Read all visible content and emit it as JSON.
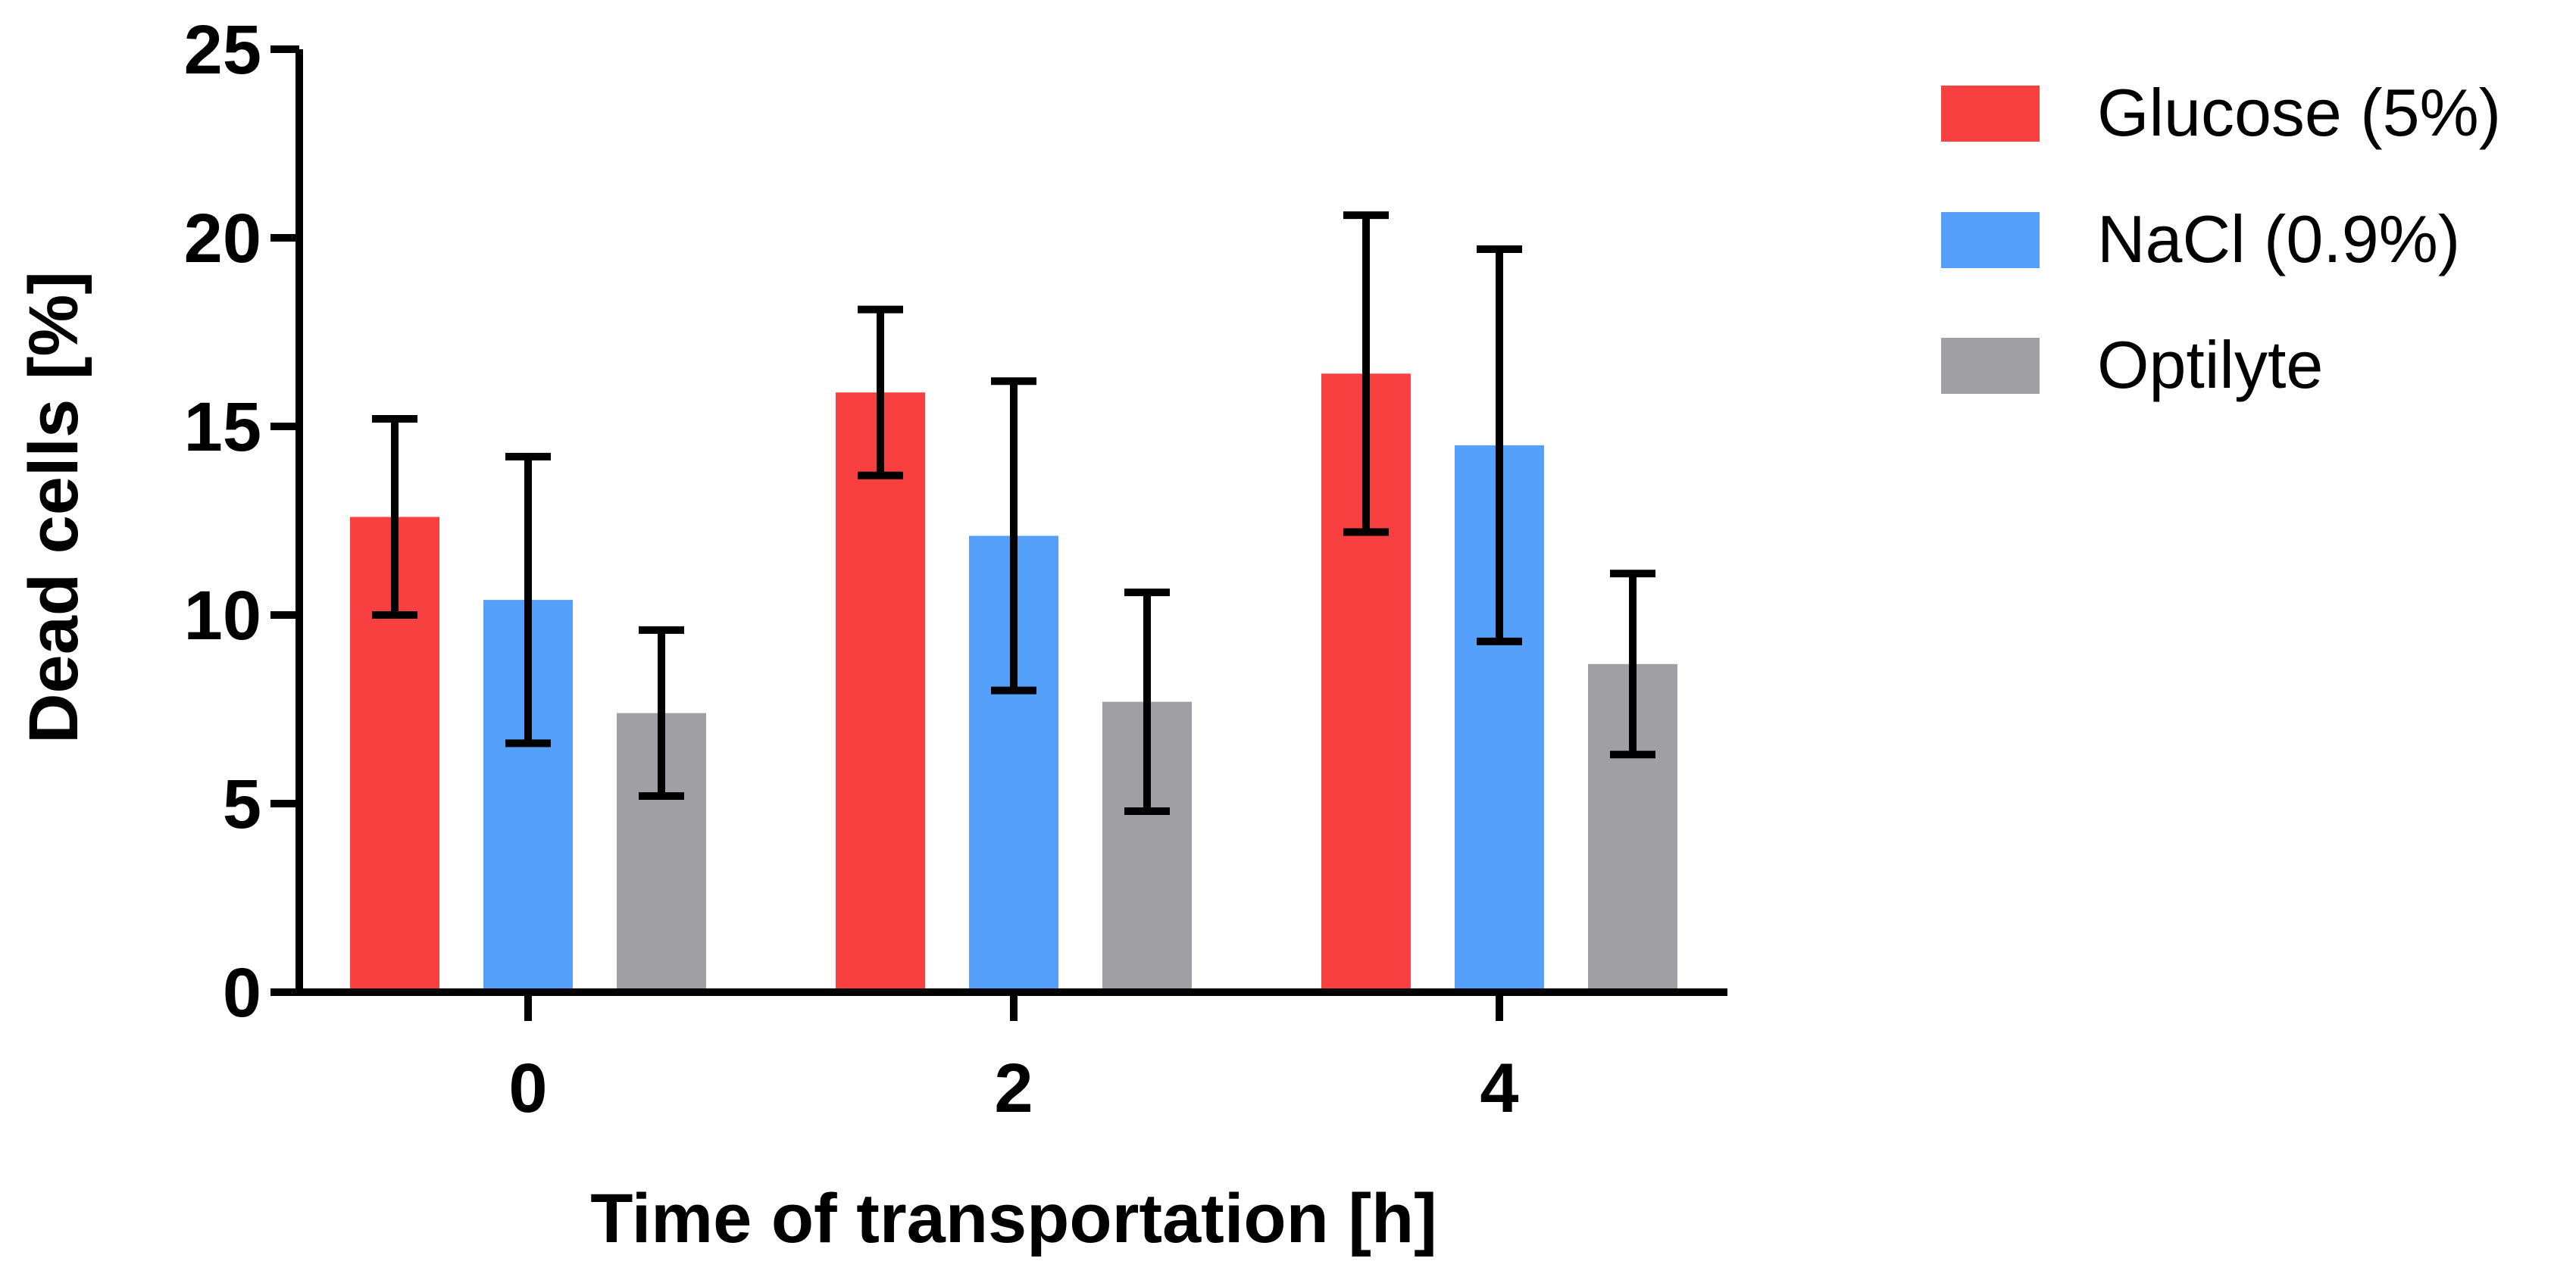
{
  "chart_data": {
    "type": "bar",
    "xlabel": "Time of transportation [h]",
    "ylabel": "Dead cells [%]",
    "ylim": [
      0,
      25
    ],
    "yticks": [
      0,
      5,
      10,
      15,
      20,
      25
    ],
    "categories": [
      "0",
      "2",
      "4"
    ],
    "series": [
      {
        "name": "Glucose (5%)",
        "color": "#f84040",
        "values": [
          12.6,
          15.9,
          16.4
        ],
        "error": [
          2.6,
          2.2,
          4.2
        ]
      },
      {
        "name": "NaCl (0.9%)",
        "color": "#55a0fa",
        "values": [
          10.4,
          12.1,
          14.5
        ],
        "error": [
          3.8,
          4.1,
          5.2
        ]
      },
      {
        "name": "Optilyte",
        "color": "#a0a0a4",
        "values": [
          7.4,
          7.7,
          8.7
        ],
        "error": [
          2.2,
          2.9,
          2.4
        ]
      }
    ],
    "legend_position": "right",
    "grid": false
  }
}
